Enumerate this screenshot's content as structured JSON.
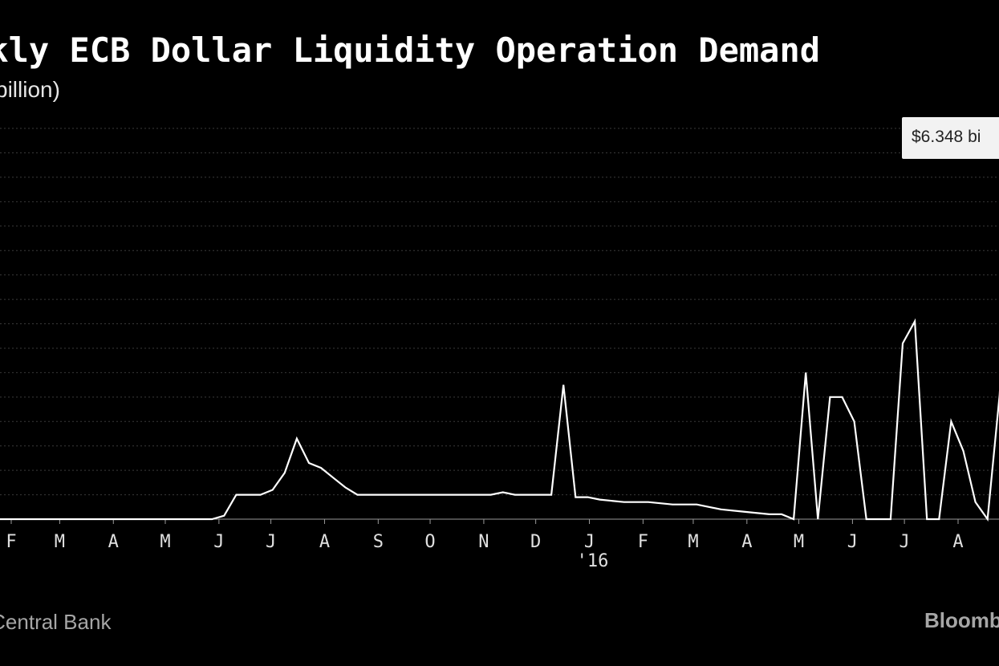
{
  "title": "ekly ECB Dollar Liquidity Operation Demand",
  "subtitle": "billion)",
  "source": "an Central Bank",
  "brand": "Bloomb",
  "callout": "$6.348 bi",
  "colors": {
    "background": "#000000",
    "line": "#ffffff",
    "grid": "#3a3a3a",
    "callout_bg": "#f2f2f2"
  },
  "chart_data": {
    "type": "line",
    "grid": true,
    "x_tick_labels": [
      "F",
      "M",
      "A",
      "M",
      "J",
      "J",
      "A",
      "S",
      "O",
      "N",
      "D",
      "J",
      "F",
      "M",
      "A",
      "M",
      "J",
      "J",
      "A"
    ],
    "x_tick_dates": [
      "2015-02-01",
      "2015-03-01",
      "2015-04-01",
      "2015-05-01",
      "2015-06-01",
      "2015-07-01",
      "2015-08-01",
      "2015-09-01",
      "2015-10-01",
      "2015-11-01",
      "2015-12-01",
      "2016-01-01",
      "2016-02-01",
      "2016-03-01",
      "2016-04-01",
      "2016-05-01",
      "2016-06-01",
      "2016-07-01",
      "2016-08-01"
    ],
    "x_year_label": "'16",
    "x_range": [
      "2015-01-01",
      "2016-08-31"
    ],
    "ylim": [
      0,
      8
    ],
    "yticks": [
      0,
      0.5,
      1,
      1.5,
      2,
      2.5,
      3,
      3.5,
      4,
      4.5,
      5,
      5.5,
      6,
      6.5,
      7,
      7.5,
      8
    ],
    "series": [
      {
        "x": [
          "2015-01-01",
          "2015-01-22",
          "2015-02-12",
          "2015-03-05",
          "2015-03-26",
          "2015-04-16",
          "2015-05-07",
          "2015-05-28",
          "2015-06-04",
          "2015-06-11",
          "2015-06-18",
          "2015-06-25",
          "2015-07-02",
          "2015-07-09",
          "2015-07-16",
          "2015-07-23",
          "2015-07-30",
          "2015-08-06",
          "2015-08-13",
          "2015-08-20",
          "2015-09-03",
          "2015-09-24",
          "2015-10-15",
          "2015-11-05",
          "2015-11-12",
          "2015-11-19",
          "2015-12-03",
          "2015-12-10",
          "2015-12-17",
          "2015-12-24",
          "2015-12-31",
          "2016-01-07",
          "2016-01-21",
          "2016-02-04",
          "2016-02-18",
          "2016-03-03",
          "2016-03-17",
          "2016-03-31",
          "2016-04-14",
          "2016-04-21",
          "2016-04-28",
          "2016-05-05",
          "2016-05-12",
          "2016-05-19",
          "2016-05-26",
          "2016-06-02",
          "2016-06-09",
          "2016-06-23",
          "2016-06-30",
          "2016-07-07",
          "2016-07-14",
          "2016-07-21",
          "2016-07-28",
          "2016-08-04",
          "2016-08-11",
          "2016-08-18",
          "2016-08-25",
          "2016-08-31"
        ],
        "y": [
          0,
          0,
          0,
          0,
          0,
          0,
          0,
          0,
          0.07,
          0.5,
          0.5,
          0.5,
          0.6,
          0.95,
          1.65,
          1.15,
          1.05,
          0.85,
          0.65,
          0.5,
          0.5,
          0.5,
          0.5,
          0.5,
          0.55,
          0.5,
          0.5,
          0.5,
          2.75,
          0.45,
          0.45,
          0.4,
          0.35,
          0.35,
          0.3,
          0.3,
          0.2,
          0.15,
          0.1,
          0.1,
          0,
          3.0,
          0,
          2.5,
          2.5,
          2.0,
          0,
          0,
          3.6,
          4.05,
          0,
          0,
          2.0,
          1.4,
          0.35,
          0,
          2.55,
          6.348
        ]
      }
    ]
  }
}
